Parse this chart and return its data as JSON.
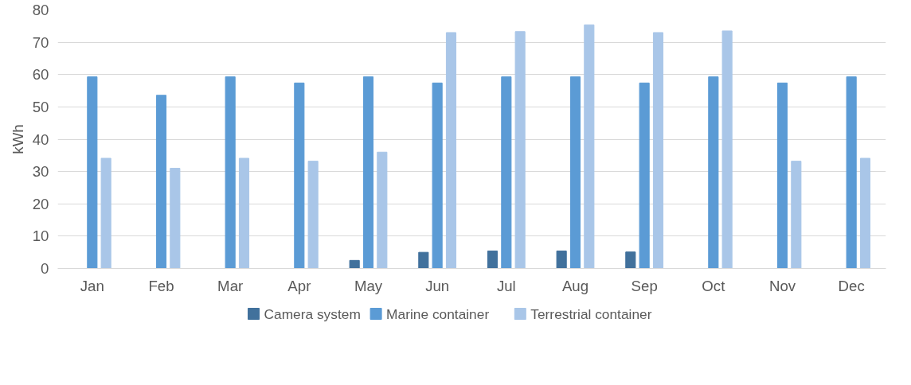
{
  "chart_data": {
    "type": "bar",
    "ylabel": "kWh",
    "categories": [
      "Jan",
      "Feb",
      "Mar",
      "Apr",
      "May",
      "Jun",
      "Jul",
      "Aug",
      "Sep",
      "Oct",
      "Nov",
      "Dec"
    ],
    "series": [
      {
        "name": "Camera system",
        "color": "#41719c",
        "values": [
          0,
          0,
          0,
          0,
          2.5,
          5.0,
          5.4,
          5.4,
          5.1,
          0,
          0,
          0
        ]
      },
      {
        "name": "Marine container",
        "color": "#5b9bd5",
        "values": [
          59.3,
          53.6,
          59.3,
          57.4,
          59.3,
          57.4,
          59.3,
          59.3,
          57.4,
          59.3,
          57.4,
          59.3
        ]
      },
      {
        "name": "Terrestrial container",
        "color": "#a9c6e8",
        "values": [
          34.1,
          31.0,
          34.1,
          33.2,
          36.0,
          73.0,
          73.3,
          75.4,
          73.0,
          73.5,
          33.2,
          34.1
        ]
      }
    ],
    "ylim": [
      0,
      80
    ],
    "yticks": [
      0,
      10,
      20,
      30,
      40,
      50,
      60,
      70,
      80
    ],
    "grid": "y",
    "legend": "bottom"
  }
}
